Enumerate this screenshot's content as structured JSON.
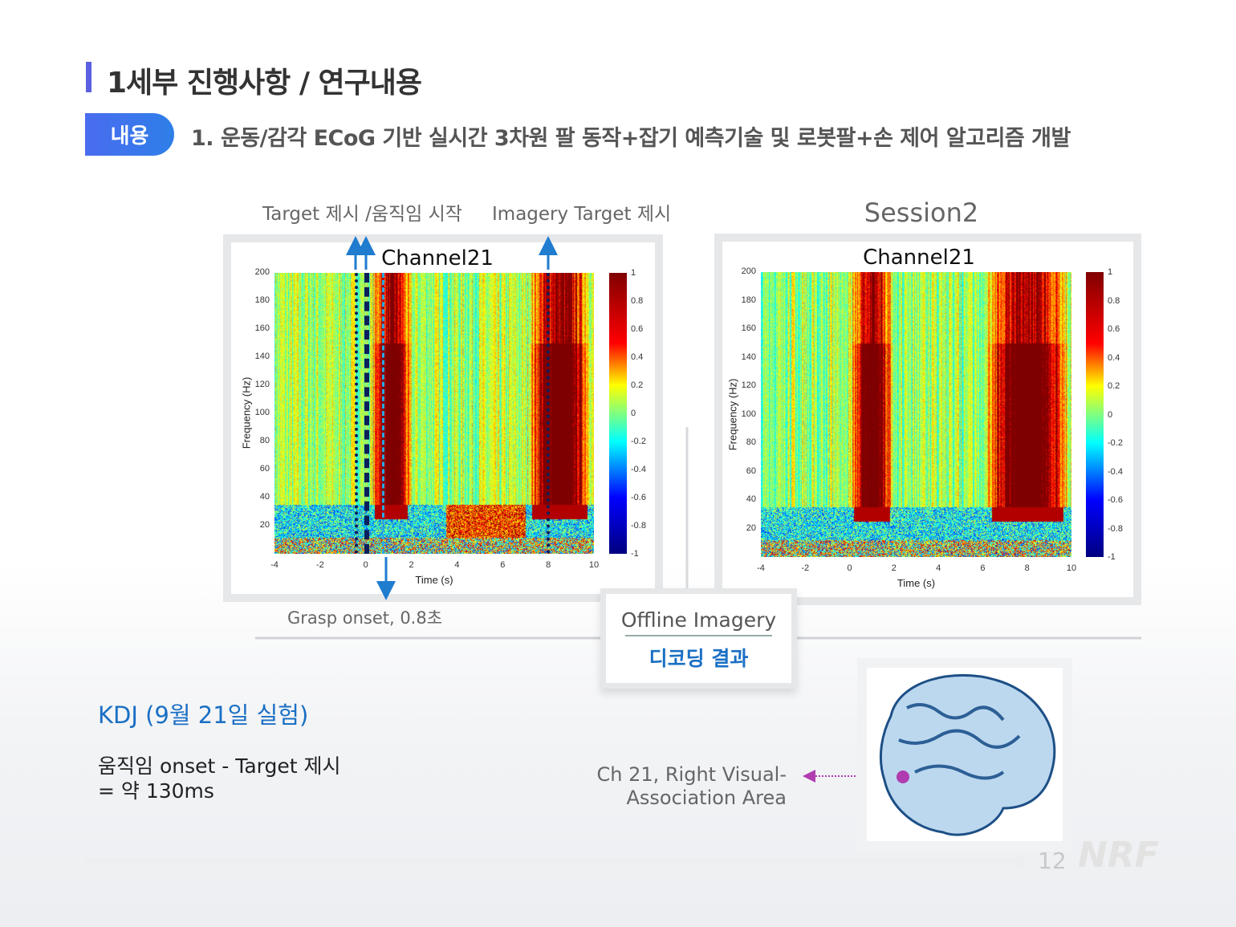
{
  "header": {
    "title": "1세부 진행사항 / 연구내용",
    "badge": "내용",
    "subtitle": "1. 운동/감각 ECoG 기반 실시간 3차원 팔 동작+잡기 예측기술 및 로봇팔+손 제어 알고리즘 개발"
  },
  "left_annotations": {
    "target_label": "Target 제시 /움직임 시작",
    "imagery_label": "Imagery Target 제시",
    "grasp_label": "Grasp onset, 0.8초"
  },
  "right_heading": "Session2",
  "chart_data": [
    {
      "type": "heatmap",
      "title": "Channel21",
      "xlabel": "Time (s)",
      "ylabel": "Frequency (Hz)",
      "xlim": [
        -4,
        10
      ],
      "ylim": [
        0,
        200
      ],
      "xticks": [
        "-4",
        "-2",
        "0",
        "2",
        "4",
        "6",
        "8",
        "10"
      ],
      "yticks": [
        "200",
        "180",
        "160",
        "140",
        "120",
        "100",
        "80",
        "60",
        "40",
        "20"
      ],
      "colorbar": {
        "range": [
          -1,
          1
        ],
        "ticks": [
          "1",
          "0.8",
          "0.6",
          "0.4",
          "0.2",
          "0",
          "-0.2",
          "-0.4",
          "-0.6",
          "-0.8",
          "-1"
        ],
        "colormap": "jet"
      },
      "markers": [
        {
          "time": -0.4,
          "style": "dotted"
        },
        {
          "time": 0,
          "style": "dashed"
        },
        {
          "time": 0.8,
          "style": "dashed-light"
        },
        {
          "time": 8,
          "style": "dotted"
        }
      ],
      "high_gamma_bursts": [
        [
          0.2,
          2
        ],
        [
          7,
          10
        ]
      ]
    },
    {
      "type": "heatmap",
      "title": "Channel21",
      "xlabel": "Time (s)",
      "ylabel": "Frequency (Hz)",
      "xlim": [
        -4,
        10
      ],
      "ylim": [
        0,
        200
      ],
      "xticks": [
        "-4",
        "-2",
        "0",
        "2",
        "4",
        "6",
        "8",
        "10"
      ],
      "yticks": [
        "200",
        "180",
        "160",
        "140",
        "120",
        "100",
        "80",
        "60",
        "40",
        "20"
      ],
      "colorbar": {
        "range": [
          -1,
          1
        ],
        "ticks": [
          "1",
          "0.8",
          "0.6",
          "0.4",
          "0.2",
          "0",
          "-0.2",
          "-0.4",
          "-0.6",
          "-0.8",
          "-1"
        ],
        "colormap": "jet"
      },
      "high_gamma_bursts": [
        [
          0,
          2
        ],
        [
          6,
          10
        ]
      ]
    }
  ],
  "offline": {
    "line1": "Offline Imagery",
    "line2": "디코딩 결과"
  },
  "notes": {
    "kdj": "KDJ (9월 21일 실험)",
    "line1": "움직임 onset  - Target 제시",
    "line2": "= 약 130ms"
  },
  "brain": {
    "label1": "Ch 21, Right Visual-",
    "label2": "Association Area"
  },
  "footer": {
    "page": "12",
    "logo": "NRF"
  },
  "colors": {
    "accent": "#5b5fe0",
    "badge": "#3a76ec",
    "blue_text": "#1a6fc4",
    "arrow": "#1f7ccf",
    "pointer": "#b03cb0"
  }
}
